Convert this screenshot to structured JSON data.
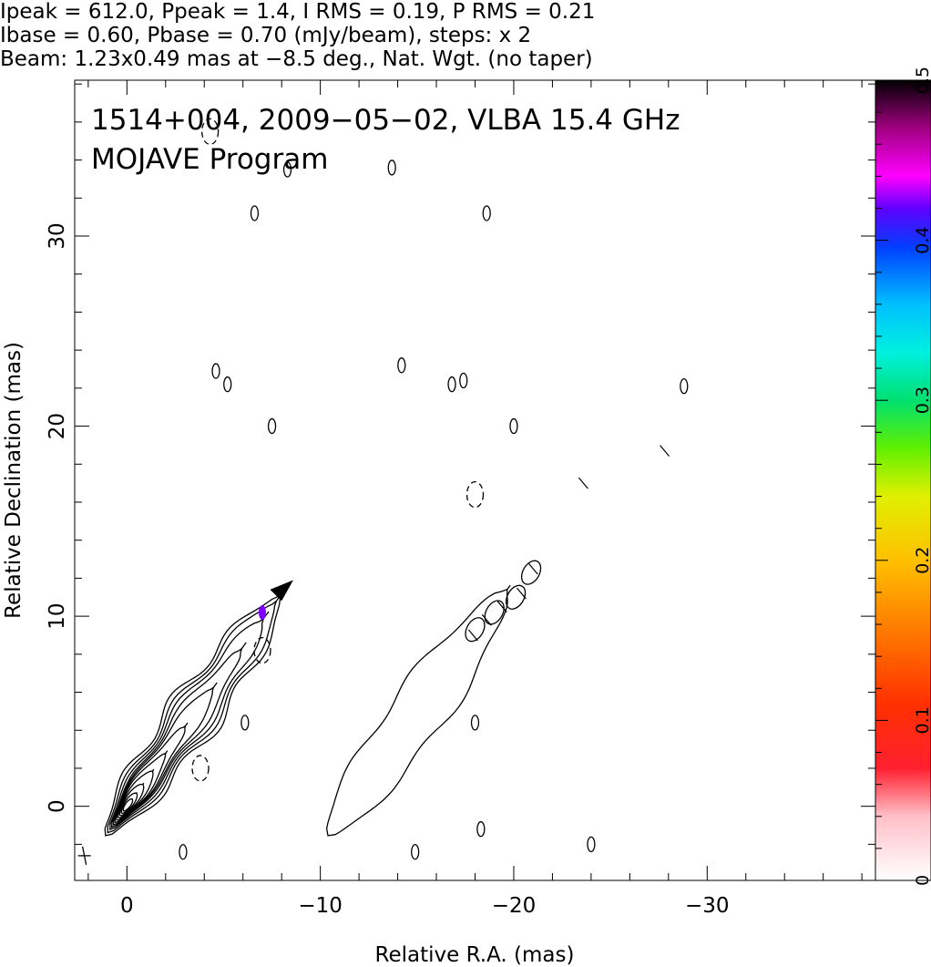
{
  "header": {
    "line1": "Ipeak = 612.0, Ppeak = 1.4, I RMS = 0.19, P RMS = 0.21",
    "line2": "Ibase = 0.60, Pbase = 0.70 (mJy/beam), steps: x 2",
    "line3": "Beam: 1.23x0.49 mas at −8.5 deg., Nat. Wgt. (no taper)"
  },
  "chart_data": {
    "type": "contour",
    "title_line1": "1514+004, 2009−05−02, VLBA 15.4 GHz",
    "title_line2": "MOJAVE Program",
    "xlabel": "Relative R.A. (mas)",
    "ylabel": "Relative Declination (mas)",
    "xlim": [
      2.7,
      -38.7
    ],
    "ylim": [
      -3.9,
      38.2
    ],
    "xticks": [
      0,
      -10,
      -20,
      -30
    ],
    "xtick_labels": [
      "0",
      "−10",
      "−20",
      "−30"
    ],
    "yticks": [
      0,
      10,
      20,
      30
    ],
    "ytick_labels": [
      "0",
      "10",
      "20",
      "30"
    ],
    "colorbar": {
      "range": [
        0,
        0.5
      ],
      "ticks": [
        0,
        0.1,
        0.2,
        0.3,
        0.4,
        0.5
      ],
      "tick_labels": [
        "0",
        "0.1",
        "0.2",
        "0.3",
        "0.4",
        "0.5"
      ]
    },
    "panels": [
      {
        "name": "total-intensity",
        "offset_x": 0
      },
      {
        "name": "polarized-intensity",
        "offset_x": -11.5
      }
    ],
    "jet_axis": {
      "start": [
        0,
        0
      ],
      "end": [
        -8.3,
        11.6
      ]
    },
    "polarization_peak": {
      "x": -7.0,
      "y": 10.2
    }
  }
}
